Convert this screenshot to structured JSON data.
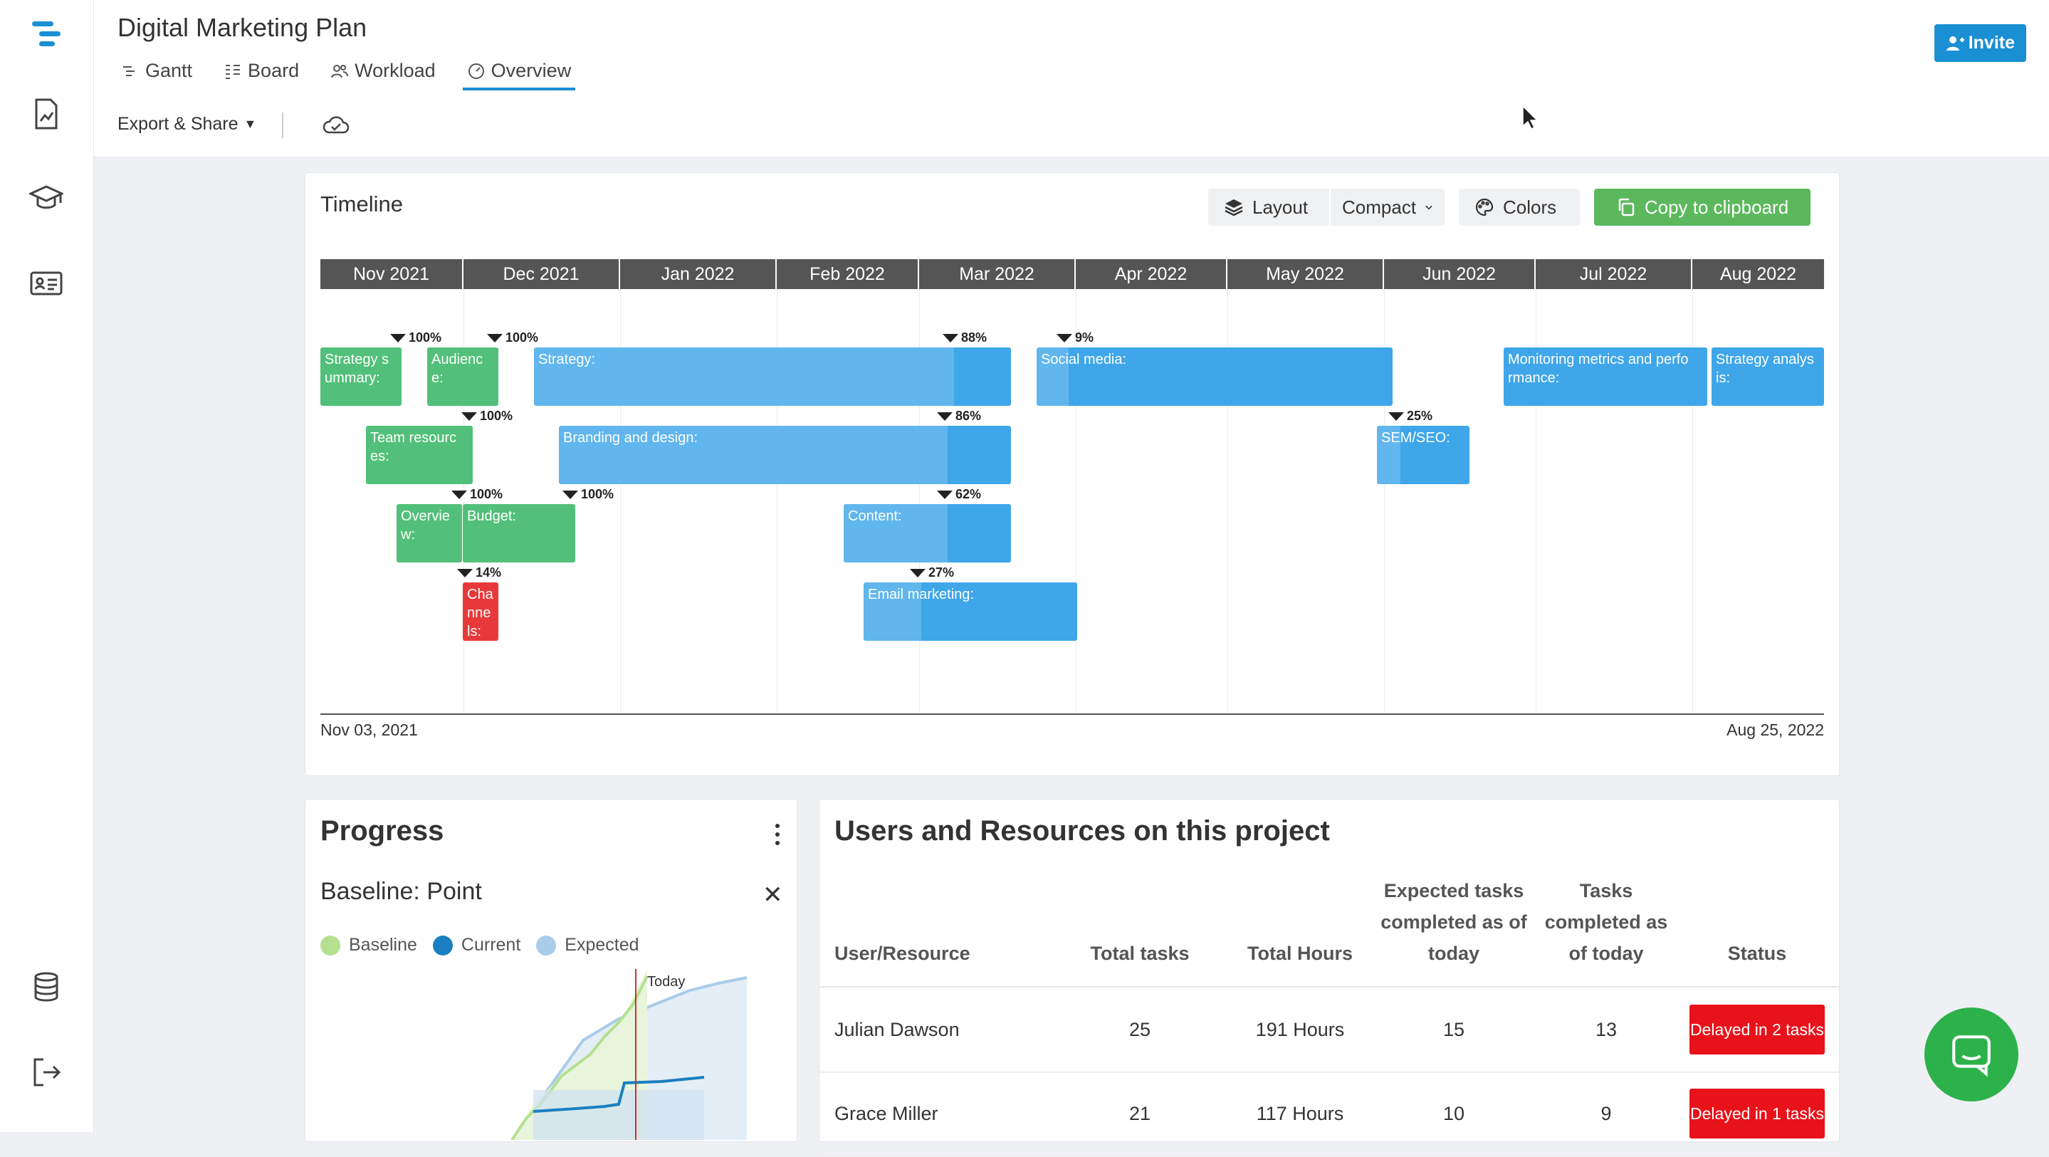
{
  "header": {
    "title": "Digital Marketing Plan",
    "tabs": [
      {
        "label": "Gantt",
        "icon": "gantt-icon"
      },
      {
        "label": "Board",
        "icon": "board-icon"
      },
      {
        "label": "Workload",
        "icon": "workload-icon"
      },
      {
        "label": "Overview",
        "icon": "overview-icon",
        "active": true
      }
    ],
    "export_label": "Export & Share",
    "invite_label": "Invite"
  },
  "rail": {
    "icons": [
      "logo-icon",
      "report-icon",
      "academy-icon",
      "contact-card-icon",
      "database-icon",
      "logout-icon"
    ]
  },
  "timeline": {
    "title": "Timeline",
    "layout_label": "Layout",
    "layout_value": "Compact",
    "colors_label": "Colors",
    "copy_label": "Copy to clipboard",
    "months": [
      "Nov 2021",
      "Dec 2021",
      "Jan 2022",
      "Feb 2022",
      "Mar 2022",
      "Apr 2022",
      "May 2022",
      "Jun 2022",
      "Jul 2022",
      "Aug 2022"
    ],
    "start_date": "Nov 03, 2021",
    "end_date": "Aug 25, 2022",
    "tasks": [
      {
        "label": "Strategy s ummary:",
        "percent": "100%",
        "color": "green"
      },
      {
        "label": "Audienc e:",
        "percent": "100%",
        "color": "green"
      },
      {
        "label": "Strategy:",
        "percent": "88%",
        "color": "blue"
      },
      {
        "label": "Social media:",
        "percent": "9%",
        "color": "blue"
      },
      {
        "label": "Monitoring metrics and perfo rmance:",
        "percent": "",
        "color": "blue"
      },
      {
        "label": "Strategy analys is:",
        "percent": "",
        "color": "blue"
      },
      {
        "label": "Team resourc es:",
        "percent": "100%",
        "color": "green"
      },
      {
        "label": "Branding and design:",
        "percent": "86%",
        "color": "blue"
      },
      {
        "label": "SEM/SEO:",
        "percent": "25%",
        "color": "blue"
      },
      {
        "label": "Overvie w:",
        "percent": "100%",
        "color": "green"
      },
      {
        "label": "Budget:",
        "percent": "100%",
        "color": "green"
      },
      {
        "label": "Content:",
        "percent": "62%",
        "color": "blue"
      },
      {
        "label": "Cha nne ls:",
        "percent": "14%",
        "color": "red"
      },
      {
        "label": "Email marketing:",
        "percent": "27%",
        "color": "blue"
      }
    ]
  },
  "progress": {
    "title": "Progress",
    "baseline_title": "Baseline: Point",
    "legend": [
      {
        "label": "Baseline",
        "color": "#b5e08f"
      },
      {
        "label": "Current",
        "color": "#1a7fc1"
      },
      {
        "label": "Expected",
        "color": "#a9cce8"
      }
    ],
    "today_label": "Today"
  },
  "users": {
    "title": "Users and Resources on this project",
    "columns": [
      "User/Resource",
      "Total tasks",
      "Total Hours",
      "Expected tasks completed as of today",
      "Tasks completed as of today",
      "Status"
    ],
    "rows": [
      {
        "name": "Julian Dawson",
        "total_tasks": "25",
        "total_hours": "191 Hours",
        "expected": "15",
        "completed": "13",
        "status": "Delayed in 2 tasks"
      },
      {
        "name": "Grace Miller",
        "total_tasks": "21",
        "total_hours": "117 Hours",
        "expected": "10",
        "completed": "9",
        "status": "Delayed in 1 tasks"
      }
    ]
  },
  "colors": {
    "accent": "#1a8fd4",
    "green_task": "#52c07a",
    "blue_task": "#3fa6ea",
    "red_task": "#e8393a",
    "copy_button": "#5cb85c",
    "delayed": "#e8121a",
    "chat": "#2db24b"
  }
}
